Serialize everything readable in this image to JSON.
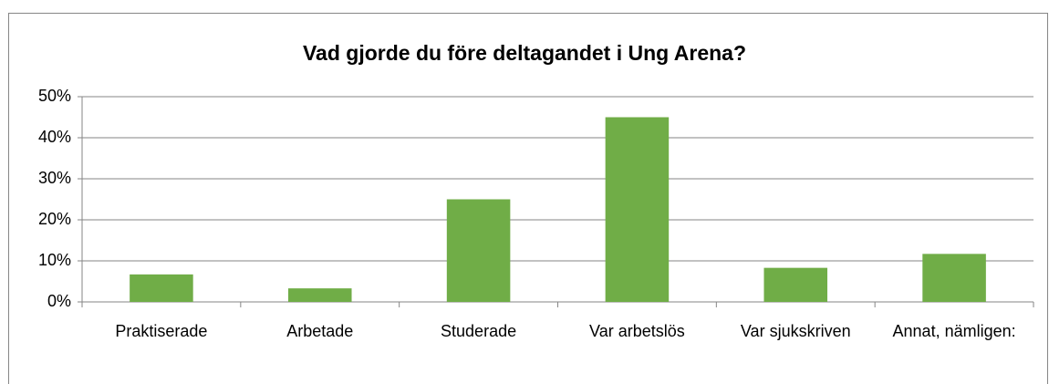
{
  "chart_data": {
    "type": "bar",
    "title": "Vad gjorde du före deltagandet i Ung Arena?",
    "categories": [
      "Praktiserade",
      "Arbetade",
      "Studerade",
      "Var arbetslös",
      "Var sjukskriven",
      "Annat, nämligen:"
    ],
    "values": [
      6.7,
      3.3,
      25,
      45,
      8.3,
      11.7
    ],
    "color": "#70ad47",
    "ylim": [
      0,
      50
    ],
    "yticks": [
      {
        "value": 0,
        "label": "0%"
      },
      {
        "value": 10,
        "label": "10%"
      },
      {
        "value": 20,
        "label": "20%"
      },
      {
        "value": 30,
        "label": "30%"
      },
      {
        "value": 40,
        "label": "40%"
      },
      {
        "value": 50,
        "label": "50%"
      }
    ],
    "grid": true
  }
}
